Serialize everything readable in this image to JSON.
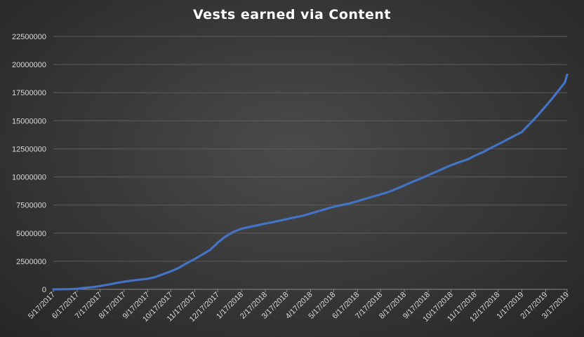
{
  "chart_data": {
    "type": "line",
    "title": "Vests earned via Content",
    "xlabel": "",
    "ylabel": "",
    "ylim": [
      0,
      22500000
    ],
    "y_ticks": [
      0,
      2500000,
      5000000,
      7500000,
      10000000,
      12500000,
      15000000,
      17500000,
      20000000,
      22500000
    ],
    "y_tick_labels": [
      "0",
      "2500000",
      "5000000",
      "7500000",
      "10000000",
      "12500000",
      "15000000",
      "17500000",
      "20000000",
      "22500000"
    ],
    "x_tick_labels": [
      "5/17/2017",
      "6/17/2017",
      "7/17/2017",
      "8/17/2017",
      "9/17/2017",
      "10/17/2017",
      "11/17/2017",
      "12/17/2017",
      "1/17/2018",
      "2/17/2018",
      "3/17/2018",
      "4/17/2018",
      "5/17/2018",
      "6/17/2018",
      "7/17/2018",
      "8/17/2018",
      "9/17/2018",
      "10/17/2018",
      "11/17/2018",
      "12/17/2018",
      "1/17/2019",
      "2/17/2019",
      "3/17/2019"
    ],
    "x_range": [
      "5/17/2017",
      "3/17/2019"
    ],
    "grid": true,
    "legend": "none",
    "series": [
      {
        "color": "#4472c4",
        "points": [
          [
            "5/17/2017",
            0
          ],
          [
            "5/27/2017",
            10000
          ],
          [
            "6/6/2017",
            20000
          ],
          [
            "6/17/2017",
            50000
          ],
          [
            "6/27/2017",
            130000
          ],
          [
            "7/7/2017",
            200000
          ],
          [
            "7/17/2017",
            300000
          ],
          [
            "7/27/2017",
            420000
          ],
          [
            "8/6/2017",
            550000
          ],
          [
            "8/17/2017",
            680000
          ],
          [
            "8/27/2017",
            770000
          ],
          [
            "9/6/2017",
            860000
          ],
          [
            "9/17/2017",
            950000
          ],
          [
            "9/27/2017",
            1100000
          ],
          [
            "10/7/2017",
            1350000
          ],
          [
            "10/17/2017",
            1600000
          ],
          [
            "10/27/2017",
            1900000
          ],
          [
            "11/6/2017",
            2300000
          ],
          [
            "11/17/2017",
            2700000
          ],
          [
            "11/27/2017",
            3100000
          ],
          [
            "12/7/2017",
            3500000
          ],
          [
            "12/17/2017",
            4150000
          ],
          [
            "12/27/2017",
            4700000
          ],
          [
            "1/6/2018",
            5100000
          ],
          [
            "1/17/2018",
            5400000
          ],
          [
            "1/27/2018",
            5550000
          ],
          [
            "2/7/2018",
            5700000
          ],
          [
            "2/17/2018",
            5850000
          ],
          [
            "2/27/2018",
            5980000
          ],
          [
            "3/7/2018",
            6100000
          ],
          [
            "3/17/2018",
            6250000
          ],
          [
            "3/27/2018",
            6400000
          ],
          [
            "4/7/2018",
            6550000
          ],
          [
            "4/17/2018",
            6750000
          ],
          [
            "4/27/2018",
            6950000
          ],
          [
            "5/7/2018",
            7150000
          ],
          [
            "5/17/2018",
            7350000
          ],
          [
            "5/27/2018",
            7500000
          ],
          [
            "6/7/2018",
            7650000
          ],
          [
            "6/17/2018",
            7850000
          ],
          [
            "6/27/2018",
            8050000
          ],
          [
            "7/7/2018",
            8250000
          ],
          [
            "7/17/2018",
            8450000
          ],
          [
            "7/27/2018",
            8650000
          ],
          [
            "8/7/2018",
            8950000
          ],
          [
            "8/17/2018",
            9250000
          ],
          [
            "8/27/2018",
            9550000
          ],
          [
            "9/7/2018",
            9850000
          ],
          [
            "9/17/2018",
            10150000
          ],
          [
            "9/27/2018",
            10450000
          ],
          [
            "10/7/2018",
            10750000
          ],
          [
            "10/17/2018",
            11050000
          ],
          [
            "10/27/2018",
            11300000
          ],
          [
            "11/7/2018",
            11550000
          ],
          [
            "11/17/2018",
            11900000
          ],
          [
            "11/27/2018",
            12200000
          ],
          [
            "12/7/2018",
            12550000
          ],
          [
            "12/17/2018",
            12900000
          ],
          [
            "12/27/2018",
            13250000
          ],
          [
            "1/7/2019",
            13650000
          ],
          [
            "1/17/2019",
            14000000
          ],
          [
            "1/27/2019",
            14700000
          ],
          [
            "2/7/2019",
            15500000
          ],
          [
            "2/17/2019",
            16300000
          ],
          [
            "2/27/2019",
            17100000
          ],
          [
            "3/7/2019",
            17800000
          ],
          [
            "3/14/2019",
            18400000
          ],
          [
            "3/17/2019",
            19100000
          ]
        ]
      }
    ]
  }
}
